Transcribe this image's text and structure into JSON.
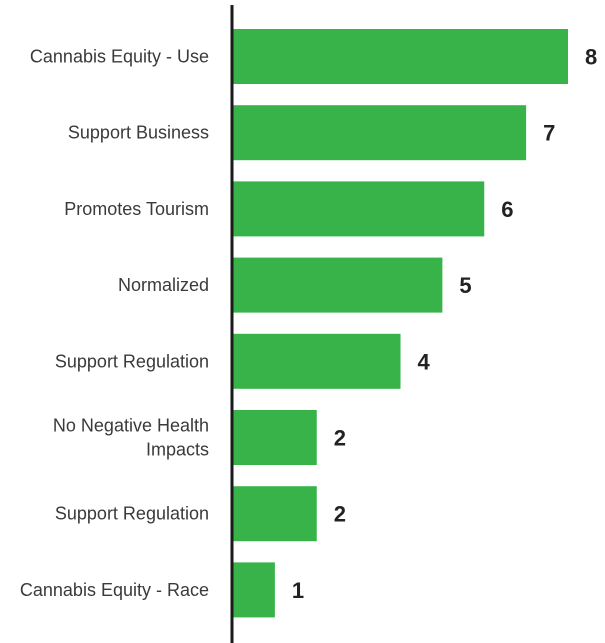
{
  "chart_data": {
    "type": "bar",
    "orientation": "horizontal",
    "categories": [
      [
        "Cannabis Equity - Use"
      ],
      [
        "Support Business"
      ],
      [
        "Promotes Tourism"
      ],
      [
        "Normalized"
      ],
      [
        "Support Regulation"
      ],
      [
        "No Negative Health",
        "Impacts"
      ],
      [
        "Support Regulation"
      ],
      [
        "Cannabis Equity - Race"
      ]
    ],
    "values": [
      8,
      7,
      6,
      5,
      4,
      2,
      2,
      1
    ],
    "xlim": [
      0,
      8
    ],
    "grid": false,
    "legend": "none",
    "bar_color": "#37b34a",
    "axis_color": "#1a1a1a"
  }
}
